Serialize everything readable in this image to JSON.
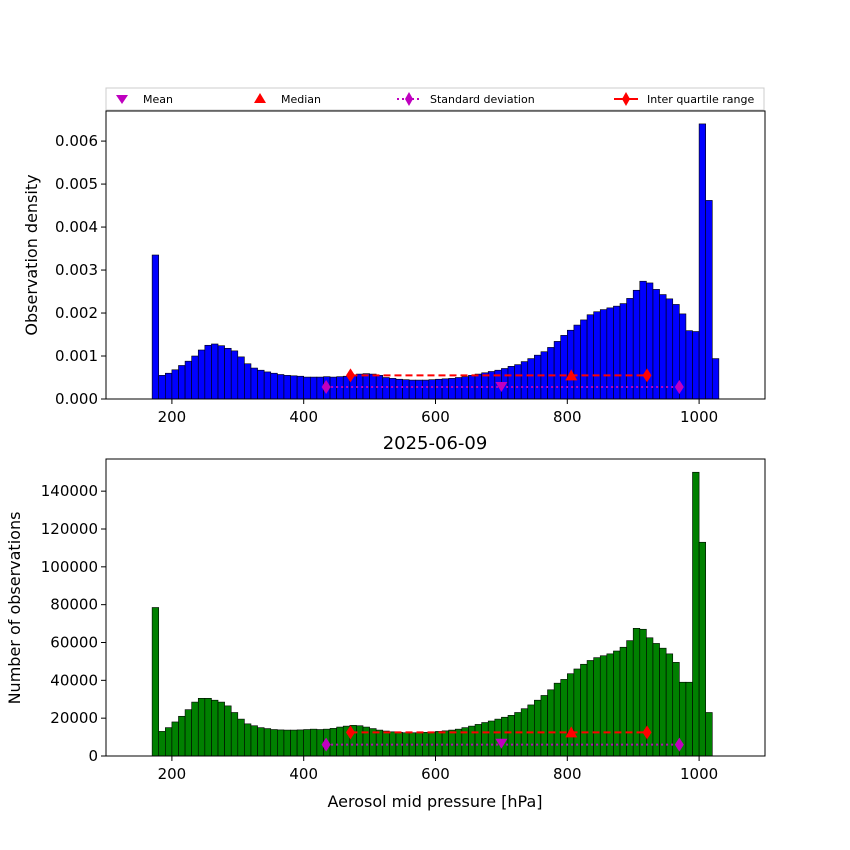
{
  "chart_data": [
    {
      "type": "bar",
      "name": "density",
      "title": "",
      "xlabel": "",
      "ylabel": "Observation density",
      "xlim": [
        100,
        1100
      ],
      "ylim": [
        0,
        0.0067
      ],
      "bar_color": "#0000ff",
      "xticks": [
        200,
        400,
        600,
        800,
        1000
      ],
      "yticks": [
        0.0,
        0.001,
        0.002,
        0.003,
        0.004,
        0.005,
        0.006
      ],
      "ytick_labels": [
        "0.000",
        "0.001",
        "0.002",
        "0.003",
        "0.004",
        "0.005",
        "0.006"
      ],
      "bins": {
        "start": 170,
        "width": 10
      },
      "values": [
        0.00335,
        0.00055,
        0.0006,
        0.00068,
        0.00078,
        0.00088,
        0.001,
        0.00114,
        0.00125,
        0.00128,
        0.00124,
        0.00118,
        0.00112,
        0.00098,
        0.00082,
        0.00072,
        0.00067,
        0.00063,
        0.0006,
        0.00057,
        0.00055,
        0.00054,
        0.00053,
        0.00051,
        0.00051,
        0.00051,
        0.00052,
        0.00051,
        0.00052,
        0.00053,
        0.00056,
        0.00058,
        0.00059,
        0.00058,
        0.00055,
        0.0005,
        0.00048,
        0.00046,
        0.00045,
        0.00044,
        0.00044,
        0.00044,
        0.00045,
        0.00046,
        0.00047,
        0.00048,
        0.0005,
        0.00052,
        0.00055,
        0.00058,
        0.00061,
        0.00064,
        0.00067,
        0.00071,
        0.00076,
        0.0008,
        0.00087,
        0.00094,
        0.00102,
        0.0011,
        0.0012,
        0.00134,
        0.00148,
        0.0016,
        0.00172,
        0.00184,
        0.00196,
        0.00203,
        0.00208,
        0.00212,
        0.00216,
        0.00222,
        0.00234,
        0.00253,
        0.00274,
        0.0027,
        0.00255,
        0.00243,
        0.00233,
        0.0022,
        0.00198,
        0.00159,
        0.00157,
        0.0064,
        0.00462,
        0.00094
      ],
      "stats": {
        "mean": 700,
        "median": 806,
        "std_range": [
          434,
          970
        ],
        "iqr_range": [
          471,
          921
        ],
        "mean_y": 0.00028,
        "median_y": 0.00055,
        "std_y": 0.00028,
        "iqr_y": 0.00055
      }
    },
    {
      "type": "bar",
      "name": "counts",
      "title": "2025-06-09",
      "xlabel": "Aerosol mid pressure [hPa]",
      "ylabel": "Number of observations",
      "xlim": [
        100,
        1100
      ],
      "ylim": [
        0,
        157000
      ],
      "bar_color": "#008000",
      "xticks": [
        200,
        400,
        600,
        800,
        1000
      ],
      "yticks": [
        0,
        20000,
        40000,
        60000,
        80000,
        100000,
        120000,
        140000
      ],
      "ytick_labels": [
        "0",
        "20000",
        "40000",
        "60000",
        "80000",
        "100000",
        "120000",
        "140000"
      ],
      "bins": {
        "start": 170,
        "width": 10
      },
      "values": [
        78500,
        13000,
        15000,
        18000,
        21000,
        24500,
        28500,
        30500,
        30500,
        29500,
        28500,
        26500,
        23000,
        19500,
        17000,
        16000,
        15000,
        14500,
        14000,
        13800,
        13700,
        13700,
        13800,
        14000,
        14200,
        14000,
        14200,
        14600,
        15300,
        15800,
        16200,
        16000,
        15300,
        14500,
        13700,
        13200,
        12800,
        12500,
        12300,
        12300,
        12300,
        12500,
        12700,
        13000,
        13300,
        13700,
        14200,
        15000,
        15800,
        16700,
        17700,
        18500,
        19500,
        20500,
        21500,
        23000,
        25000,
        27000,
        29500,
        32000,
        35000,
        38500,
        40500,
        43500,
        46000,
        48500,
        50500,
        52000,
        53000,
        54000,
        55500,
        57500,
        61000,
        67500,
        67000,
        62500,
        59500,
        57000,
        54000,
        49500,
        39000,
        39000,
        150000,
        113000,
        23000
      ],
      "stats": {
        "mean": 700,
        "median": 806,
        "std_range": [
          434,
          970
        ],
        "iqr_range": [
          471,
          921
        ],
        "mean_y": 6500,
        "median_y": 12500,
        "std_y": 6000,
        "iqr_y": 12500
      }
    }
  ],
  "legend": {
    "placement": "top",
    "items": [
      {
        "label": "Mean",
        "marker": "triangle-down",
        "color": "#bf00bf"
      },
      {
        "label": "Median",
        "marker": "triangle-up",
        "color": "#ff0000"
      },
      {
        "label": "Standard deviation",
        "marker": "thin-diamond",
        "color": "#bf00bf",
        "line": "dotted"
      },
      {
        "label": "Inter quartile range",
        "marker": "thin-diamond",
        "color": "#ff0000",
        "line": "solid"
      }
    ]
  }
}
